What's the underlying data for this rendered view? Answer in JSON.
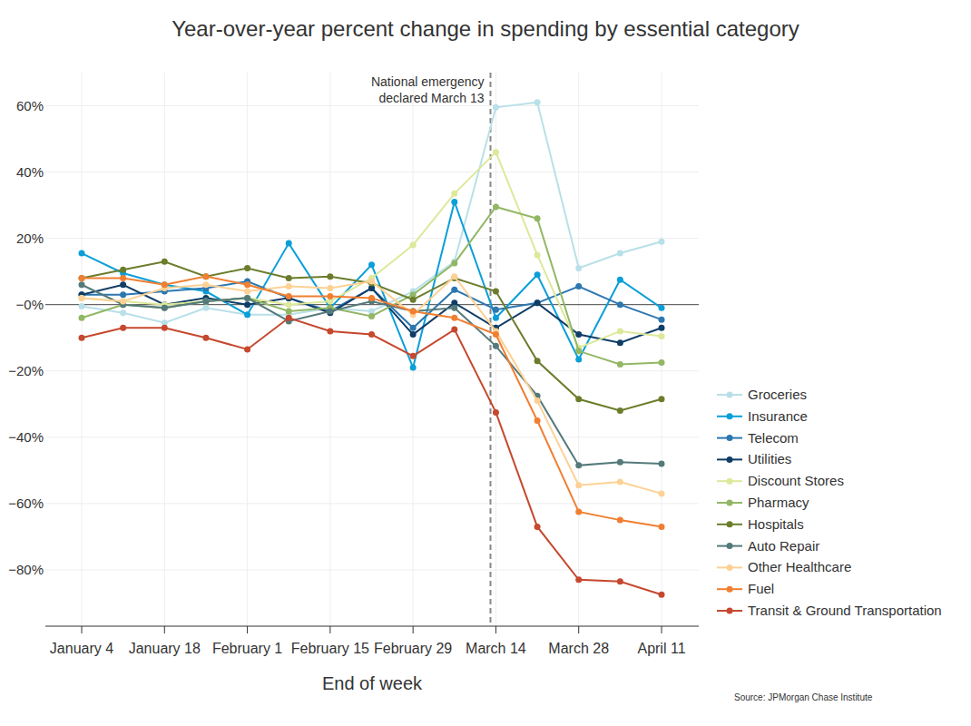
{
  "chart_data": {
    "type": "line",
    "title": "Year-over-year percent change in spending by essential category",
    "x_label": "End of week",
    "source": "Source: JPMorgan Chase Institute",
    "categories": [
      "January 4",
      null,
      "January 18",
      null,
      "February 1",
      null,
      "February 15",
      null,
      "February 29",
      null,
      "March 14",
      null,
      "March 28",
      null,
      "April 11"
    ],
    "ylim": [
      -97,
      70
    ],
    "yticks": [
      {
        "value": -80,
        "label": "−80%"
      },
      {
        "value": -60,
        "label": "−60%"
      },
      {
        "value": -40,
        "label": "−40%"
      },
      {
        "value": -20,
        "label": "−20%"
      },
      {
        "value": 0,
        "label": "−0%"
      },
      {
        "value": 20,
        "label": "20%"
      },
      {
        "value": 40,
        "label": "40%"
      },
      {
        "value": 60,
        "label": "60%"
      }
    ],
    "grid": true,
    "legend": "right",
    "marker": "circle",
    "annotations": [
      {
        "lines": [
          "National emergency",
          "declared March 13"
        ],
        "x": 9.87,
        "line_style": "dashed"
      }
    ],
    "series": [
      {
        "name": "Groceries",
        "color": "#b8e0e8",
        "values": [
          -0.5,
          -2.5,
          -5.5,
          -1,
          -3,
          -3,
          -1,
          -2,
          4,
          13,
          59.5,
          61,
          11,
          15.5,
          19
        ]
      },
      {
        "name": "Insurance",
        "color": "#0b9fd8",
        "values": [
          15.5,
          9.5,
          6,
          4,
          -3,
          18.5,
          -1,
          12,
          -19,
          31,
          -4,
          9,
          -16.5,
          7.5,
          -1
        ]
      },
      {
        "name": "Telecom",
        "color": "#2c77b0",
        "values": [
          3,
          3,
          4,
          5,
          7,
          2,
          -2,
          5,
          -7,
          4.5,
          -1.5,
          0.5,
          5.5,
          0,
          -4.5
        ]
      },
      {
        "name": "Utilities",
        "color": "#0f3d66",
        "values": [
          3,
          6,
          0,
          2,
          0,
          2,
          -2.5,
          5,
          -9,
          0.5,
          -7,
          0.5,
          -9,
          -11.5,
          -7
        ]
      },
      {
        "name": "Discount Stores",
        "color": "#dde89a",
        "values": [
          2,
          1,
          0,
          1,
          2,
          0,
          1,
          8,
          18,
          33.5,
          46,
          15,
          -13,
          -8,
          -9.5
        ]
      },
      {
        "name": "Pharmacy",
        "color": "#92b764",
        "values": [
          -4,
          0,
          -1,
          1,
          2,
          -2,
          -1,
          -3.5,
          3,
          12.5,
          29.5,
          26,
          -14,
          -18,
          -17.5
        ]
      },
      {
        "name": "Hospitals",
        "color": "#6b7d2c",
        "values": [
          8,
          10.5,
          13,
          8.5,
          11,
          8,
          8.5,
          6.5,
          1.5,
          8,
          4,
          -17,
          -28.5,
          -32,
          -28.5
        ]
      },
      {
        "name": "Auto Repair",
        "color": "#557a7a",
        "values": [
          6,
          0,
          -1,
          1,
          2,
          -5,
          -2,
          1,
          -2,
          -1,
          -12.5,
          -27.5,
          -48.5,
          -47.5,
          -48
        ]
      },
      {
        "name": "Other Healthcare",
        "color": "#fdd195",
        "values": [
          2,
          1,
          5,
          6,
          4,
          5.5,
          5,
          7,
          -3,
          8.5,
          -8,
          -29,
          -54.5,
          -53.5,
          -57
        ]
      },
      {
        "name": "Fuel",
        "color": "#f07f32",
        "values": [
          8,
          8,
          6,
          8.5,
          6,
          2.5,
          2.5,
          2,
          -2,
          -4,
          -9,
          -35,
          -62.5,
          -65,
          -67
        ]
      },
      {
        "name": "Transit & Ground Transportation",
        "color": "#c6482e",
        "values": [
          -10,
          -7,
          -7,
          -10,
          -13.5,
          -4,
          -8,
          -9,
          -15.5,
          -7.5,
          -32.5,
          -67,
          -83,
          -83.5,
          -87.5
        ]
      }
    ]
  }
}
